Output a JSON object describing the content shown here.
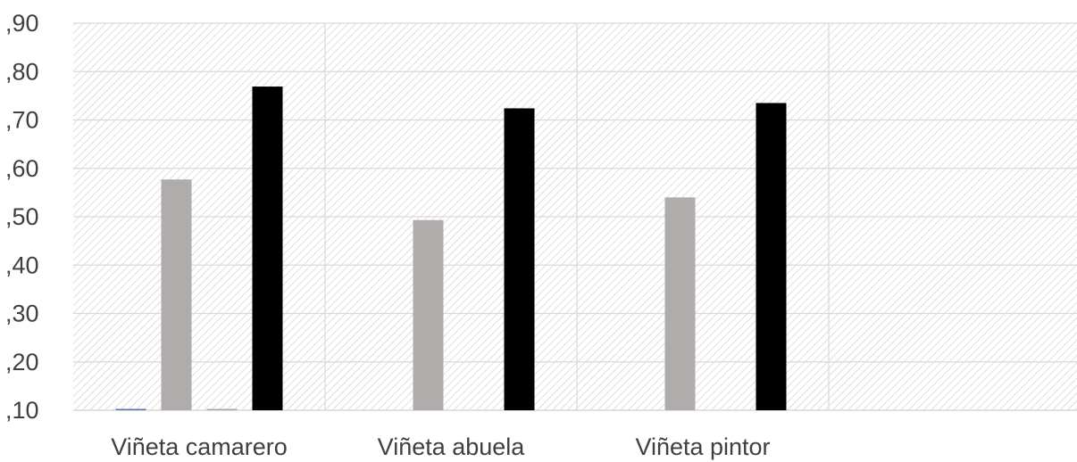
{
  "chart_data": {
    "type": "bar",
    "categories": [
      "Viñeta camarero",
      "Viñeta abuela",
      "Viñeta pintor",
      ""
    ],
    "series": [
      {
        "values": [
          0.099,
          null,
          null,
          null
        ],
        "color": "#4472C4"
      },
      {
        "values": [
          0.577,
          0.493,
          0.54,
          null
        ],
        "color": "#B0ACAB"
      },
      {
        "values": [
          0.098,
          null,
          null,
          null
        ],
        "color": "#A5A5A5"
      },
      {
        "values": [
          0.769,
          0.724,
          0.735,
          null
        ],
        "color": "#000000"
      }
    ],
    "y_ticks": [
      {
        "value": 0.1,
        "label": ",10"
      },
      {
        "value": 0.2,
        "label": ",20"
      },
      {
        "value": 0.3,
        "label": ",30"
      },
      {
        "value": 0.4,
        "label": ",40"
      },
      {
        "value": 0.5,
        "label": ",50"
      },
      {
        "value": 0.6,
        "label": ",60"
      },
      {
        "value": 0.7,
        "label": ",70"
      },
      {
        "value": 0.8,
        "label": ",80"
      },
      {
        "value": 0.9,
        "label": ",90"
      }
    ],
    "ylim": [
      0.1,
      0.9
    ],
    "grid": true,
    "background_pattern": "diagonal-hatch",
    "title": "",
    "xlabel": "",
    "ylabel": ""
  }
}
